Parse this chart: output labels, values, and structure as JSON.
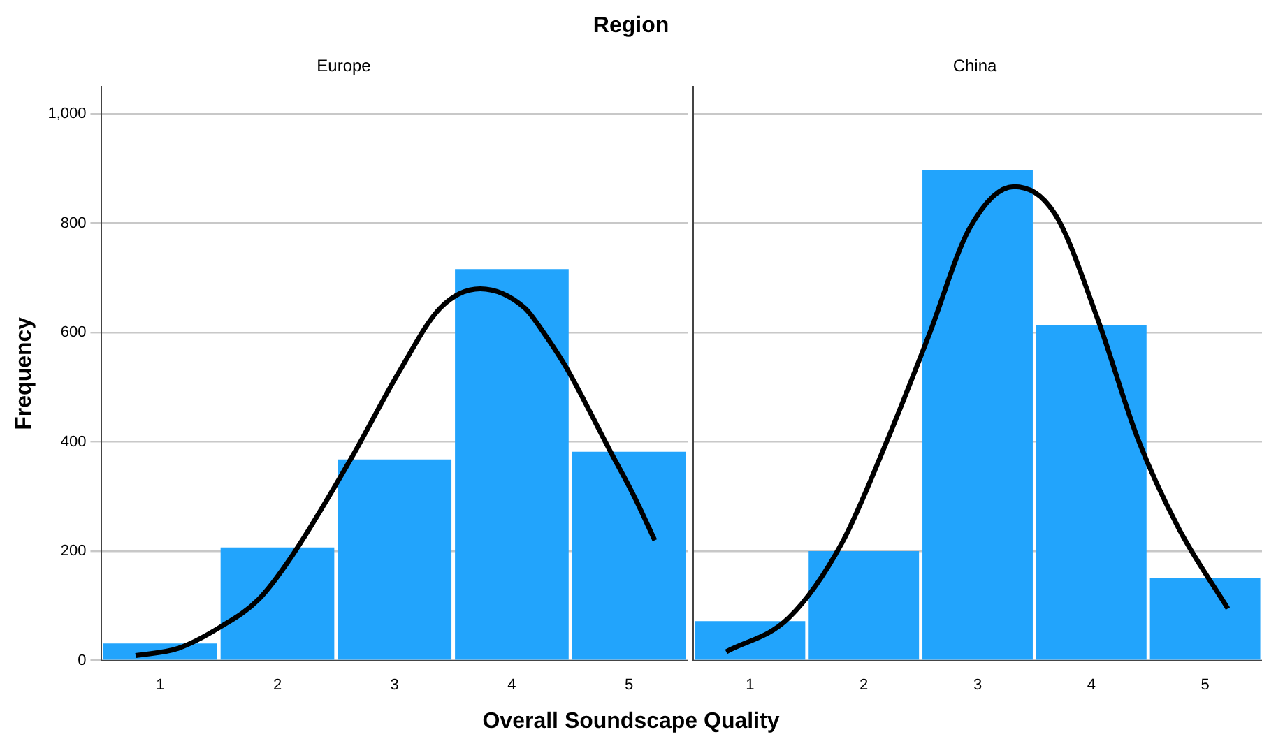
{
  "chart_data": [
    {
      "type": "histogram",
      "title": "Region",
      "subtitle": "Europe",
      "xlabel": "Overall Soundscape Quality",
      "ylabel": "Frequency",
      "bins": [
        0.5,
        1.5,
        2.5,
        3.5,
        4.5,
        5.5
      ],
      "xlim": [
        0.5,
        5.5
      ],
      "xticks": [
        1,
        2,
        3,
        4,
        5
      ],
      "ylim": [
        0,
        1050
      ],
      "yticks": [
        0,
        200,
        400,
        600,
        800,
        {
          "value": 1000,
          "label": "1,000"
        }
      ],
      "grid": "y",
      "series": [
        {
          "color": "#22a4fc",
          "values": [
            31,
            207,
            368,
            716,
            382
          ]
        },
        {
          "type": "line",
          "color": "#000000",
          "x": [
            0.79,
            1.15,
            1.51,
            1.84,
            2.12,
            2.63,
            3.03,
            3.39,
            3.73,
            4.11,
            4.29,
            4.47,
            4.83,
            5.04,
            5.22
          ],
          "values": [
            9,
            22,
            61,
            112,
            190,
            370,
            525,
            645,
            680,
            645,
            594,
            534,
            387,
            302,
            220
          ]
        }
      ]
    },
    {
      "type": "histogram",
      "subtitle": "China",
      "bins": [
        0.5,
        1.5,
        2.5,
        3.5,
        4.5,
        5.5
      ],
      "xlim": [
        0.5,
        5.5
      ],
      "xticks": [
        1,
        2,
        3,
        4,
        5
      ],
      "ylim": [
        0,
        1050
      ],
      "yticks": [
        0,
        200,
        400,
        600,
        800,
        1000
      ],
      "grid": "y",
      "tick_labels": "x",
      "series": [
        {
          "color": "#22a4fc",
          "values": [
            72,
            200,
            897,
            613,
            151
          ]
        },
        {
          "type": "line",
          "color": "#000000",
          "x": [
            0.79,
            1.34,
            1.81,
            2.21,
            2.57,
            2.93,
            3.32,
            3.68,
            4.05,
            4.41,
            4.77,
            5.2
          ],
          "values": [
            16,
            78,
            216,
            405,
            594,
            791,
            867,
            817,
            628,
            405,
            241,
            95
          ]
        }
      ]
    }
  ]
}
